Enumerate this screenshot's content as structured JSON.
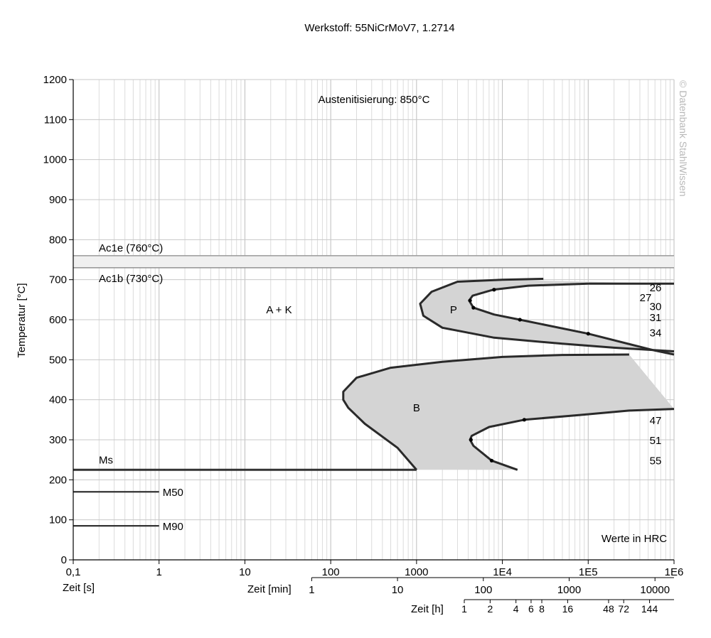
{
  "chart_data": {
    "type": "line",
    "title": "Werkstoff: 55NiCrMoV7, 1.2714",
    "subtitle": "Austenitisierung: 850°C",
    "watermark": "© Datenbank StahlWissen",
    "note": "Werte in HRC",
    "ylabel": "Temperatur [°C]",
    "ylim": [
      0,
      1200
    ],
    "yticks": [
      "0",
      "100",
      "200",
      "300",
      "400",
      "500",
      "600",
      "700",
      "800",
      "900",
      "1000",
      "1100",
      "1200"
    ],
    "x_scale": "log",
    "xlim": [
      0.1,
      1000000
    ],
    "grid": true,
    "axes": {
      "seconds": {
        "label": "Zeit [s]",
        "ticks": [
          {
            "v": 0.1,
            "t": "0,1"
          },
          {
            "v": 1,
            "t": "1"
          },
          {
            "v": 10,
            "t": "10"
          },
          {
            "v": 100,
            "t": "100"
          },
          {
            "v": 1000,
            "t": "1000"
          },
          {
            "v": 10000,
            "t": "1E4"
          },
          {
            "v": 100000,
            "t": "1E5"
          },
          {
            "v": 1000000,
            "t": "1E6"
          }
        ]
      },
      "minutes": {
        "label": "Zeit [min]",
        "ticks": [
          {
            "v": 60,
            "t": "1"
          },
          {
            "v": 600,
            "t": "10"
          },
          {
            "v": 6000,
            "t": "100"
          },
          {
            "v": 60000,
            "t": "1000"
          },
          {
            "v": 600000,
            "t": "10000"
          }
        ]
      },
      "hours": {
        "label": "Zeit [h]",
        "ticks": [
          {
            "v": 3600,
            "t": "1"
          },
          {
            "v": 7200,
            "t": "2"
          },
          {
            "v": 14400,
            "t": "4"
          },
          {
            "v": 21600,
            "t": "6"
          },
          {
            "v": 28800,
            "t": "8"
          },
          {
            "v": 57600,
            "t": "16"
          },
          {
            "v": 172800,
            "t": "48"
          },
          {
            "v": 259200,
            "t": "72"
          },
          {
            "v": 518400,
            "t": "144"
          }
        ]
      }
    },
    "reference_lines": [
      {
        "name": "Ac1e (760°C)",
        "temp": 760
      },
      {
        "name": "Ac1b (730°C)",
        "temp": 730
      }
    ],
    "martensite_lines": [
      {
        "name": "Ms",
        "temp": 225,
        "x_end": 1000
      },
      {
        "name": "M50",
        "temp": 170,
        "x_end": 1
      },
      {
        "name": "M90",
        "temp": 85,
        "x_end": 1
      }
    ],
    "regions": [
      {
        "name": "A + K",
        "x": 25,
        "temp": 625
      },
      {
        "name": "P",
        "x": 2700,
        "temp": 625
      },
      {
        "name": "B",
        "x": 1000,
        "temp": 380
      }
    ],
    "hardness_labels": [
      {
        "text": "26",
        "temp": 680
      },
      {
        "text": "27",
        "temp": 655
      },
      {
        "text": "30",
        "temp": 633
      },
      {
        "text": "31",
        "temp": 605
      },
      {
        "text": "34",
        "temp": 567
      },
      {
        "text": "47",
        "temp": 348
      },
      {
        "text": "51",
        "temp": 298
      },
      {
        "text": "55",
        "temp": 248
      }
    ],
    "series": [
      {
        "name": "Pearlit Beginn",
        "points": [
          [
            30000,
            702
          ],
          [
            10000,
            700
          ],
          [
            3000,
            695
          ],
          [
            1500,
            670
          ],
          [
            1100,
            640
          ],
          [
            1200,
            610
          ],
          [
            2000,
            580
          ],
          [
            8000,
            555
          ],
          [
            50000,
            540
          ],
          [
            200000,
            530
          ],
          [
            1000000,
            521
          ]
        ]
      },
      {
        "name": "Pearlit Ende",
        "points": [
          [
            1000000,
            690
          ],
          [
            100000,
            690
          ],
          [
            20000,
            685
          ],
          [
            7800,
            675
          ],
          [
            4500,
            660
          ],
          [
            4100,
            648
          ],
          [
            4600,
            630
          ],
          [
            8000,
            613
          ],
          [
            16000,
            600
          ],
          [
            100000,
            565
          ],
          [
            600000,
            523
          ],
          [
            1000000,
            513
          ]
        ]
      },
      {
        "name": "Bainit Beginn",
        "points": [
          [
            300000,
            513
          ],
          [
            50000,
            512
          ],
          [
            10000,
            507
          ],
          [
            2000,
            495
          ],
          [
            500,
            480
          ],
          [
            200,
            455
          ],
          [
            140,
            420
          ],
          [
            140,
            400
          ],
          [
            160,
            380
          ],
          [
            250,
            340
          ],
          [
            600,
            280
          ],
          [
            1000,
            225
          ]
        ]
      },
      {
        "name": "Bainit Ende",
        "points": [
          [
            1000000,
            377
          ],
          [
            300000,
            373
          ],
          [
            80000,
            362
          ],
          [
            18000,
            350
          ],
          [
            7000,
            332
          ],
          [
            4400,
            310
          ],
          [
            4200,
            300
          ],
          [
            4600,
            285
          ],
          [
            7500,
            248
          ],
          [
            15000,
            225
          ]
        ]
      }
    ],
    "measurement_points": [
      {
        "x": 8000,
        "temp": 675
      },
      {
        "x": 4200,
        "temp": 648
      },
      {
        "x": 4600,
        "temp": 630
      },
      {
        "x": 16000,
        "temp": 600
      },
      {
        "x": 100000,
        "temp": 565
      },
      {
        "x": 18000,
        "temp": 350
      },
      {
        "x": 4300,
        "temp": 300
      },
      {
        "x": 7500,
        "temp": 248
      }
    ]
  }
}
